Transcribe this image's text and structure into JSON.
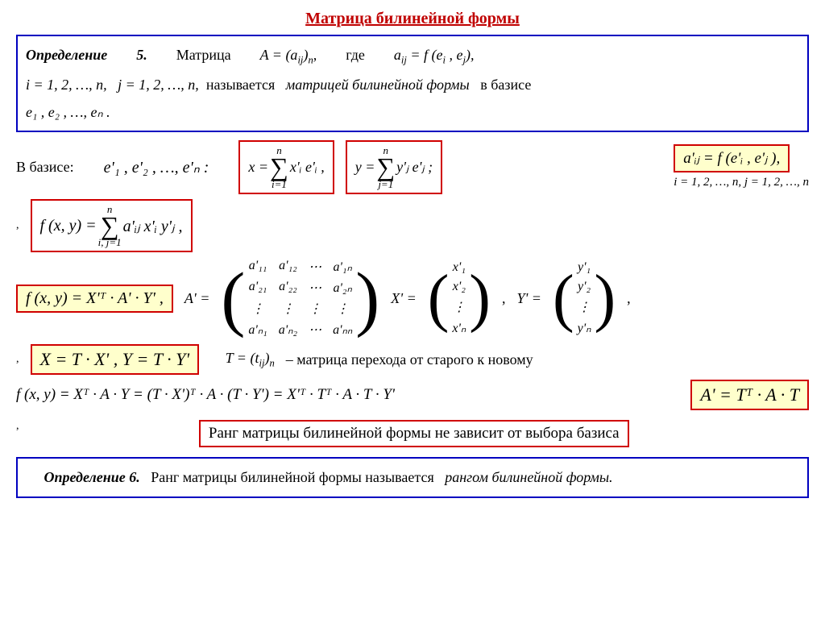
{
  "title": "Матрица билинейной формы",
  "def5": {
    "label": "Определение",
    "num": "5.",
    "word_matrix": "Матрица",
    "A_eq": "A = (a",
    "A_sub": "ij",
    "A_close": ")",
    "A_n": "n",
    "comma": ",",
    "where": "где",
    "aij_eq": "a",
    "aij_sub": "ij",
    "eq_f": " = f (e",
    "ei": "i",
    "sep": " , e",
    "ej": "j",
    "close": "),",
    "line2_i": "i = 1, 2, …, n,",
    "line2_j": "j = 1, 2, …, n,",
    "called": "называется",
    "matrix_bilinear": "матрицей билинейной формы",
    "in_basis": "в базисе",
    "basis_e": "e₁ , e₂ , …, eₙ ."
  },
  "in_basis_label": "В базисе:",
  "basis_prime": "e'₁ , e'₂ , …, e'ₙ :",
  "x_sum": {
    "lhs": "x =",
    "top": "n",
    "bot": "i=1",
    "body": "x'ᵢ e'ᵢ ,"
  },
  "y_sum": {
    "lhs": "y =",
    "top": "n",
    "bot": "j=1",
    "body": "y'ⱼ e'ⱼ ;"
  },
  "aij_prime": "a'ᵢⱼ = f (e'ᵢ , e'ⱼ ),",
  "ij_range": "i = 1, 2, …, n,   j = 1, 2, …, n",
  "fxy_sum": {
    "lhs": "f (x, y) =",
    "top": "n",
    "bot": "i, j=1",
    "body": "a'ᵢⱼ x'ᵢ y'ⱼ ,"
  },
  "fxy_matrix": "f (x, y) = X'ᵀ · A' · Y' ,",
  "A_prime_label": "A' =",
  "X_prime_label": "X' =",
  "Y_prime_label": "Y' =",
  "matrix_A": {
    "r1": [
      "a'₁₁",
      "a'₁₂",
      "⋯",
      "a'₁ₙ"
    ],
    "r2": [
      "a'₂₁",
      "a'₂₂",
      "⋯",
      "a'₂ₙ"
    ],
    "r3": [
      "⋮",
      "⋮",
      "⋮",
      "⋮"
    ],
    "r4": [
      "a'ₙ₁",
      "a'ₙ₂",
      "⋯",
      "a'ₙₙ"
    ]
  },
  "vec_X": [
    "x'₁",
    "x'₂",
    "⋮",
    "x'ₙ"
  ],
  "vec_Y": [
    "y'₁",
    "y'₂",
    "⋮",
    "y'ₙ"
  ],
  "transform": "X = T · X' , Y = T · Y'",
  "T_def_pre": "T = (t",
  "T_def_sub": "ij",
  "T_def_close": ")",
  "T_def_n": "n",
  "T_desc": " – матрица перехода от старого к новому",
  "chain": "f (x, y) = Xᵀ · A · Y = (T · X')ᵀ · A · (T · Y') = X'ᵀ · Tᵀ · A · T · Y'",
  "result": "A' = Tᵀ · A · T",
  "rank_statement": "Ранг матрицы билинейной формы не зависит от выбора базиса",
  "def6": {
    "label": "Определение 6.",
    "text1": "Ранг матрицы билинейной формы называется",
    "text2": "рангом билинейной формы."
  },
  "colors": {
    "title": "#c00000",
    "blue_border": "#0000c0",
    "red_border": "#d00000",
    "yellow_bg": "#ffffcc"
  }
}
